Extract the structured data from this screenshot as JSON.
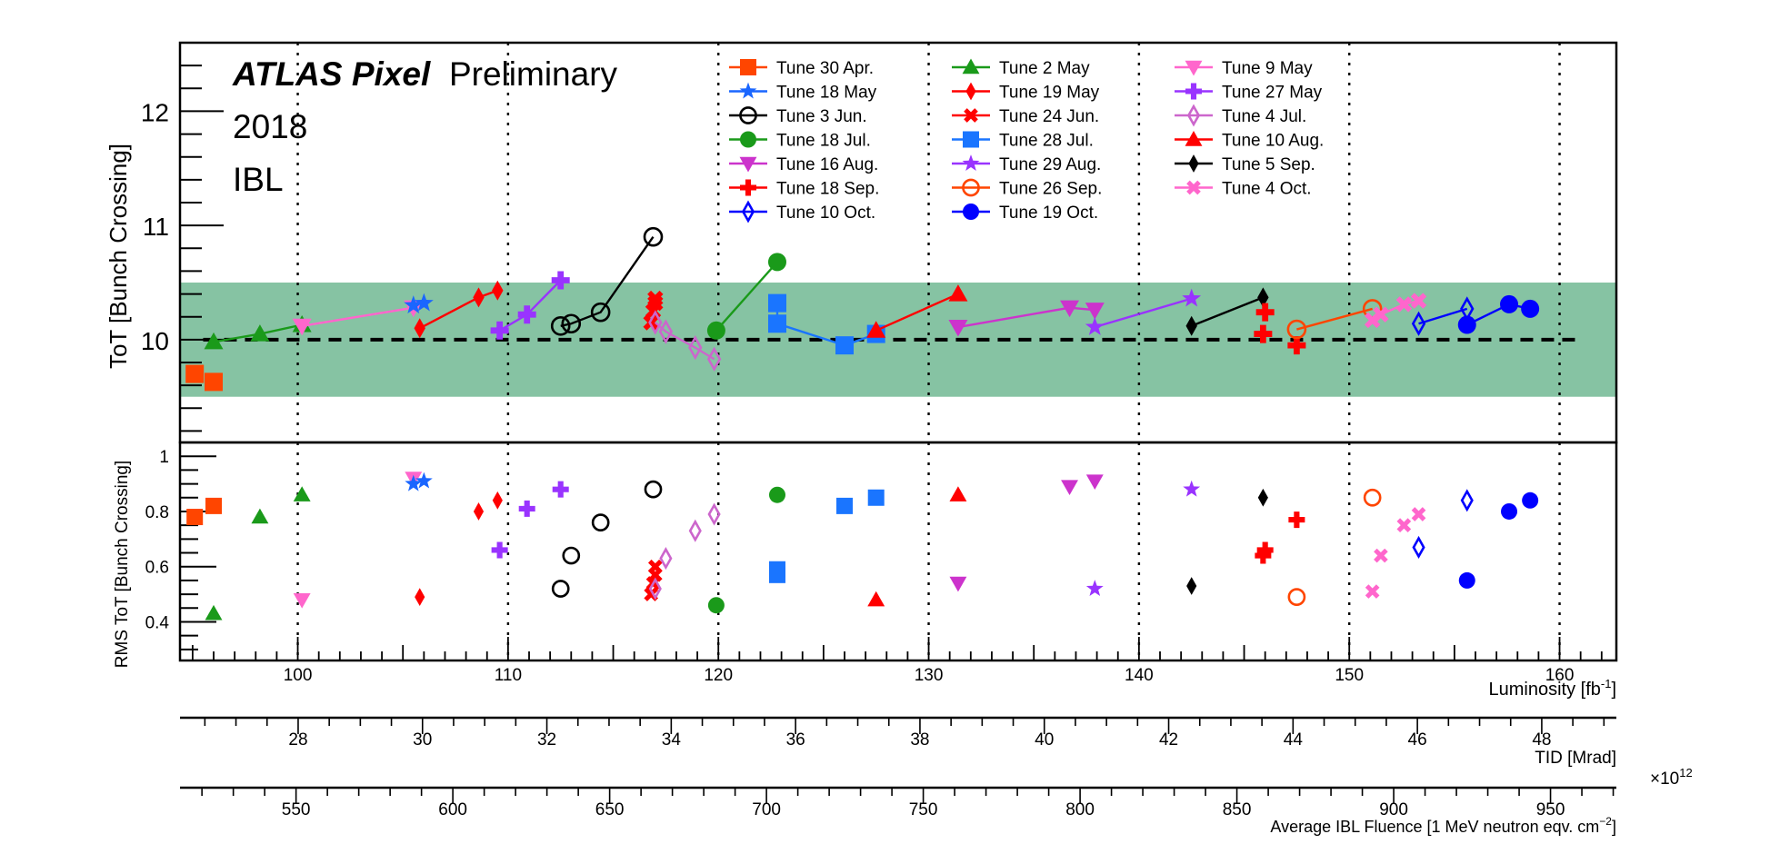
{
  "chart_data": {
    "type": "scatter",
    "header": {
      "brand": "ATLAS Pixel",
      "status": "Preliminary",
      "year": "2018",
      "detector": "IBL"
    },
    "top_panel": {
      "ylabel": "ToT [Bunch Crossing]",
      "ylim": [
        9.1,
        12.6
      ],
      "yticks": [
        "10",
        "11",
        "12"
      ],
      "band": [
        9.5,
        10.5
      ],
      "reference_line": 10
    },
    "bottom_panel": {
      "ylabel": "RMS ToT [Bunch Crossing]",
      "ylim": [
        0.26,
        1.05
      ],
      "yticks": [
        "0.4",
        "0.6",
        "0.8",
        "1"
      ]
    },
    "x_axis": {
      "xlabel": "Luminosity [fb",
      "xlabel_sup": "-1",
      "xlabel_tail": "]",
      "xlim": [
        94.4,
        162.7
      ],
      "xticks": [
        "100",
        "110",
        "120",
        "130",
        "140",
        "150",
        "160"
      ],
      "gridlines": [
        100,
        110,
        120,
        130,
        140,
        150,
        160
      ]
    },
    "tid_axis": {
      "label": "TID [Mrad]",
      "lim": [
        26.1,
        49.2
      ],
      "ticks": [
        "28",
        "30",
        "32",
        "34",
        "36",
        "38",
        "40",
        "42",
        "44",
        "46",
        "48"
      ]
    },
    "fluence_axis": {
      "label": "Average IBL Fluence [1 MeV neutron eqv. cm",
      "label_sup": "−2",
      "label_tail": "]",
      "multiplier": "×10",
      "multiplier_exp": "12",
      "lim": [
        513,
        971
      ],
      "ticks": [
        "550",
        "600",
        "650",
        "700",
        "750",
        "800",
        "850",
        "900",
        "950"
      ]
    },
    "series": [
      {
        "name": "Tune 30 Apr.",
        "color": "#ff4500",
        "marker": "square",
        "connect": false,
        "tot": [
          [
            95.1,
            9.7
          ],
          [
            96.0,
            9.63
          ]
        ],
        "rms": [
          [
            95.1,
            0.78
          ],
          [
            96.0,
            0.82
          ]
        ]
      },
      {
        "name": "Tune 2 May",
        "color": "#1a9a1a",
        "marker": "triangle-up",
        "connect": true,
        "tot": [
          [
            96.0,
            9.98
          ],
          [
            98.2,
            10.05
          ],
          [
            100.2,
            10.13
          ]
        ],
        "rms": [
          [
            96.0,
            0.43
          ],
          [
            98.2,
            0.78
          ],
          [
            100.2,
            0.86
          ]
        ]
      },
      {
        "name": "Tune 9 May",
        "color": "#ff66cc",
        "marker": "triangle-down",
        "connect": true,
        "tot": [
          [
            100.2,
            10.12
          ],
          [
            105.5,
            10.28
          ]
        ],
        "rms": [
          [
            100.2,
            0.48
          ],
          [
            105.5,
            0.92
          ]
        ]
      },
      {
        "name": "Tune 18 May",
        "color": "#1a66ff",
        "marker": "star",
        "connect": false,
        "tot": [
          [
            105.5,
            10.3
          ],
          [
            106.0,
            10.32
          ]
        ],
        "rms": [
          [
            105.5,
            0.9
          ],
          [
            106.0,
            0.91
          ]
        ]
      },
      {
        "name": "Tune 19 May",
        "color": "#ff0000",
        "marker": "diamond",
        "connect": true,
        "tot": [
          [
            105.8,
            10.1
          ],
          [
            108.6,
            10.37
          ],
          [
            109.5,
            10.43
          ]
        ],
        "rms": [
          [
            105.8,
            0.49
          ],
          [
            108.6,
            0.8
          ],
          [
            109.5,
            0.84
          ]
        ]
      },
      {
        "name": "Tune 27 May",
        "color": "#9933ff",
        "marker": "plus",
        "connect": true,
        "tot": [
          [
            109.6,
            10.08
          ],
          [
            110.9,
            10.22
          ],
          [
            112.5,
            10.52
          ]
        ],
        "rms": [
          [
            109.6,
            0.66
          ],
          [
            110.9,
            0.81
          ],
          [
            112.5,
            0.88
          ]
        ]
      },
      {
        "name": "Tune 3 Jun.",
        "color": "#000000",
        "marker": "circle-open",
        "connect": true,
        "tot": [
          [
            112.5,
            10.12
          ],
          [
            113.0,
            10.14
          ],
          [
            114.4,
            10.24
          ],
          [
            116.9,
            10.9
          ]
        ],
        "rms": [
          [
            112.5,
            0.52
          ],
          [
            113.0,
            0.64
          ],
          [
            114.4,
            0.76
          ],
          [
            116.9,
            0.88
          ]
        ]
      },
      {
        "name": "Tune 24 Jun.",
        "color": "#ff0000",
        "marker": "cross",
        "connect": false,
        "tot": [
          [
            116.8,
            10.15
          ],
          [
            116.9,
            10.25
          ],
          [
            117.0,
            10.32
          ],
          [
            117.0,
            10.36
          ]
        ],
        "rms": [
          [
            116.8,
            0.5
          ],
          [
            116.9,
            0.54
          ],
          [
            117.0,
            0.57
          ],
          [
            117.0,
            0.6
          ]
        ]
      },
      {
        "name": "Tune 4 Jul.",
        "color": "#cc66cc",
        "marker": "diamond-open",
        "connect": true,
        "tot": [
          [
            117.0,
            10.15
          ],
          [
            117.5,
            10.07
          ],
          [
            118.9,
            9.93
          ],
          [
            119.8,
            9.83
          ]
        ],
        "rms": [
          [
            117.0,
            0.52
          ],
          [
            117.5,
            0.63
          ],
          [
            118.9,
            0.73
          ],
          [
            119.8,
            0.79
          ]
        ]
      },
      {
        "name": "Tune 18 Jul.",
        "color": "#1a9a1a",
        "marker": "circle",
        "connect": true,
        "tot": [
          [
            119.9,
            10.08
          ],
          [
            122.8,
            10.68
          ]
        ],
        "rms": [
          [
            119.9,
            0.46
          ],
          [
            122.8,
            0.86
          ]
        ]
      },
      {
        "name": "Tune 28 Jul.",
        "color": "#1a75ff",
        "marker": "square",
        "connect": true,
        "tot": [
          [
            122.8,
            10.32
          ],
          [
            122.8,
            10.14
          ],
          [
            126.0,
            9.95
          ],
          [
            127.5,
            10.05
          ]
        ],
        "rms": [
          [
            122.8,
            0.59
          ],
          [
            122.8,
            0.57
          ],
          [
            126.0,
            0.82
          ],
          [
            127.5,
            0.85
          ]
        ]
      },
      {
        "name": "Tune 10 Aug.",
        "color": "#ff0000",
        "marker": "triangle-up",
        "connect": true,
        "tot": [
          [
            127.5,
            10.08
          ],
          [
            131.4,
            10.4
          ]
        ],
        "rms": [
          [
            127.5,
            0.48
          ],
          [
            131.4,
            0.86
          ]
        ]
      },
      {
        "name": "Tune 16 Aug.",
        "color": "#cc33cc",
        "marker": "triangle-down",
        "connect": true,
        "tot": [
          [
            131.4,
            10.11
          ],
          [
            136.7,
            10.28
          ],
          [
            137.9,
            10.26
          ]
        ],
        "rms": [
          [
            131.4,
            0.54
          ],
          [
            136.7,
            0.89
          ],
          [
            137.9,
            0.91
          ]
        ]
      },
      {
        "name": "Tune 29 Aug.",
        "color": "#9933ff",
        "marker": "star",
        "connect": true,
        "tot": [
          [
            137.9,
            10.11
          ],
          [
            142.5,
            10.36
          ]
        ],
        "rms": [
          [
            137.9,
            0.52
          ],
          [
            142.5,
            0.88
          ]
        ]
      },
      {
        "name": "Tune 5 Sep.",
        "color": "#000000",
        "marker": "diamond",
        "connect": true,
        "tot": [
          [
            142.5,
            10.12
          ],
          [
            145.9,
            10.37
          ]
        ],
        "rms": [
          [
            142.5,
            0.53
          ],
          [
            145.9,
            0.85
          ]
        ]
      },
      {
        "name": "Tune 18 Sep.",
        "color": "#ff0000",
        "marker": "plus",
        "connect": false,
        "tot": [
          [
            145.9,
            10.05
          ],
          [
            146.0,
            10.24
          ],
          [
            147.5,
            9.95
          ]
        ],
        "rms": [
          [
            145.9,
            0.64
          ],
          [
            146.0,
            0.66
          ],
          [
            147.5,
            0.77
          ]
        ]
      },
      {
        "name": "Tune 26 Sep.",
        "color": "#ff4500",
        "marker": "circle-open",
        "connect": true,
        "tot": [
          [
            147.5,
            10.09
          ],
          [
            151.1,
            10.27
          ]
        ],
        "rms": [
          [
            147.5,
            0.49
          ],
          [
            151.1,
            0.85
          ]
        ]
      },
      {
        "name": "Tune 4 Oct.",
        "color": "#ff66cc",
        "marker": "cross",
        "connect": true,
        "tot": [
          [
            151.1,
            10.17
          ],
          [
            151.5,
            10.22
          ],
          [
            152.6,
            10.31
          ],
          [
            153.3,
            10.34
          ]
        ],
        "rms": [
          [
            151.1,
            0.51
          ],
          [
            151.5,
            0.64
          ],
          [
            152.6,
            0.75
          ],
          [
            153.3,
            0.79
          ]
        ]
      },
      {
        "name": "Tune 10 Oct.",
        "color": "#0000ff",
        "marker": "diamond-open",
        "connect": true,
        "tot": [
          [
            153.3,
            10.14
          ],
          [
            155.6,
            10.27
          ]
        ],
        "rms": [
          [
            153.3,
            0.67
          ],
          [
            155.6,
            0.84
          ]
        ]
      },
      {
        "name": "Tune 19 Oct.",
        "color": "#0000ff",
        "marker": "circle",
        "connect": true,
        "tot": [
          [
            155.6,
            10.13
          ],
          [
            157.6,
            10.31
          ],
          [
            158.6,
            10.27
          ]
        ],
        "rms": [
          [
            155.6,
            0.55
          ],
          [
            157.6,
            0.8
          ],
          [
            158.6,
            0.84
          ]
        ]
      }
    ],
    "legend_order": [
      "Tune 30 Apr.",
      "Tune 2 May",
      "Tune 9 May",
      "Tune 18 May",
      "Tune 19 May",
      "Tune 27 May",
      "Tune 3 Jun.",
      "Tune 24 Jun.",
      "Tune 4 Jul.",
      "Tune 18 Jul.",
      "Tune 28 Jul.",
      "Tune 10 Aug.",
      "Tune 16 Aug.",
      "Tune 29 Aug.",
      "Tune 5 Sep.",
      "Tune 18 Sep.",
      "Tune 26 Sep.",
      "Tune 4 Oct.",
      "Tune 10 Oct.",
      "Tune 19 Oct."
    ],
    "colors": {
      "band": "#86c3a3",
      "reference": "#000000",
      "axis": "#000000"
    }
  }
}
